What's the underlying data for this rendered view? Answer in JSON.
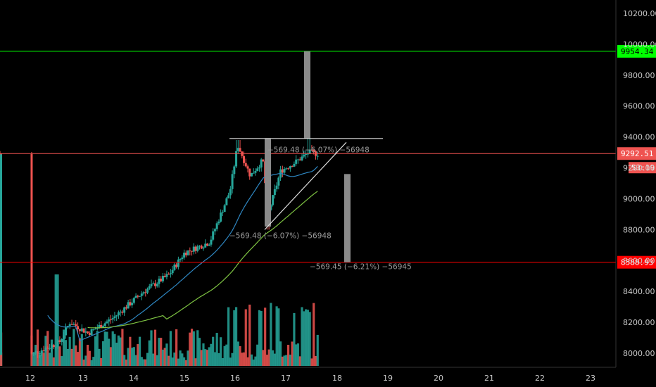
{
  "chart_data": {
    "type": "candlestick",
    "ylim": [
      7920,
      10300
    ],
    "y_ticks": [
      8000,
      8200,
      8400,
      8600,
      8800,
      9000,
      9200,
      9400,
      9600,
      9800,
      10000,
      10200
    ],
    "y_tick_labels": [
      "8000.00",
      "8200.00",
      "8400.00",
      "8600.00",
      "8800.00",
      "9000.00",
      "9200.00",
      "9400.00",
      "9600.00",
      "9800.00",
      "10000.00",
      "10200.00"
    ],
    "x_ticks": [
      "12",
      "13",
      "14",
      "15",
      "16",
      "17",
      "18",
      "19",
      "20",
      "21",
      "22",
      "23"
    ],
    "grid": false,
    "colors": {
      "up": "#26a69a",
      "down": "#ef5350",
      "ma_fast": "#c9b458",
      "ma_mid": "#2e86c1",
      "ma_slow": "#7dc242",
      "resistance_line": "#22bb22",
      "price_line": "#cc3333",
      "support_line": "#cc2222"
    },
    "price_levels": [
      {
        "value": 9954.34,
        "label": "9954.34",
        "color": "#00ff00",
        "text_color": "#000000"
      },
      {
        "value": 9292.51,
        "label": "9292.51",
        "color": "#ef5350",
        "text_color": "#ffffff"
      },
      {
        "value": 8588.93,
        "label": "8588.93",
        "color": "#ff0000",
        "text_color": "#ffffff"
      }
    ],
    "countdown": "53:19",
    "annotations": [
      "−569.48 (−6.07%) −56948",
      "−569.48 (−6.07%) −56948",
      "−569.45 (−6.21%) −56945"
    ],
    "key_points": {
      "start_close": 7990,
      "day13_close": 8100,
      "day15_close": 8650,
      "day16_high": 9380,
      "day17_low": 8800,
      "last_close": 9292.51
    }
  }
}
